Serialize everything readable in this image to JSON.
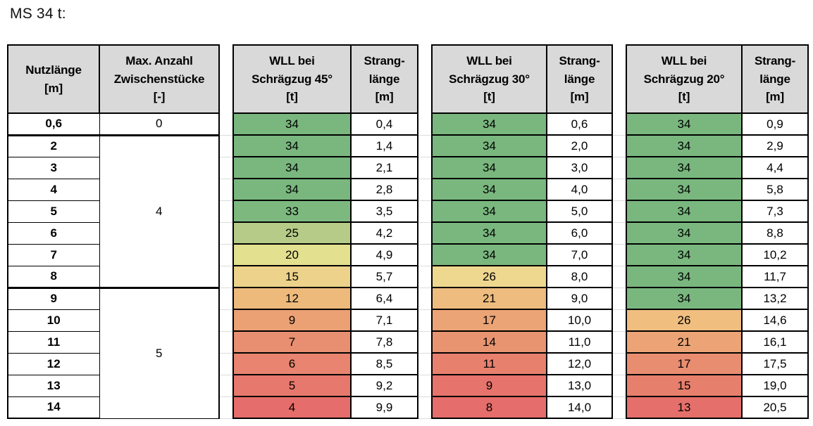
{
  "title": "MS 34 t:",
  "colors": {
    "header_bg": "#d9d9d9",
    "grid": "#000000",
    "faint_grid": "#dcdcdc",
    "scale_green": "#79B77E",
    "scale_yellow": "#E8E291",
    "scale_red": "#E56D6B"
  },
  "table": {
    "headers": {
      "nutzlaenge": "Nutzlänge\n[m]",
      "anzahl": "Max. Anzahl\nZwischenstücke\n[-]",
      "wll45": "WLL bei\nSchrägzug 45°\n[t]",
      "wll30": "WLL bei\nSchrägzug 30°\n[t]",
      "wll20": "WLL bei\nSchrägzug 20°\n[t]",
      "strang": "Strang-\nlänge\n[m]"
    },
    "anzahl_groups": [
      {
        "label": "0",
        "span": 1
      },
      {
        "label": "4",
        "span": 7
      },
      {
        "label": "5",
        "span": 6
      }
    ],
    "rows": [
      {
        "nutzlaenge": "0,6",
        "wll45": "34",
        "wll45_color": "#79B77E",
        "strang45": "0,4",
        "wll30": "34",
        "wll30_color": "#79B77E",
        "strang30": "0,6",
        "wll20": "34",
        "wll20_color": "#79B77E",
        "strang20": "0,9"
      },
      {
        "nutzlaenge": "2",
        "wll45": "34",
        "wll45_color": "#79B77E",
        "strang45": "1,4",
        "wll30": "34",
        "wll30_color": "#79B77E",
        "strang30": "2,0",
        "wll20": "34",
        "wll20_color": "#79B77E",
        "strang20": "2,9"
      },
      {
        "nutzlaenge": "3",
        "wll45": "34",
        "wll45_color": "#79B77E",
        "strang45": "2,1",
        "wll30": "34",
        "wll30_color": "#79B77E",
        "strang30": "3,0",
        "wll20": "34",
        "wll20_color": "#79B77E",
        "strang20": "4,4"
      },
      {
        "nutzlaenge": "4",
        "wll45": "34",
        "wll45_color": "#79B77E",
        "strang45": "2,8",
        "wll30": "34",
        "wll30_color": "#79B77E",
        "strang30": "4,0",
        "wll20": "34",
        "wll20_color": "#79B77E",
        "strang20": "5,8"
      },
      {
        "nutzlaenge": "5",
        "wll45": "33",
        "wll45_color": "#7DB97F",
        "strang45": "3,5",
        "wll30": "34",
        "wll30_color": "#79B77E",
        "strang30": "5,0",
        "wll20": "34",
        "wll20_color": "#79B77E",
        "strang20": "7,3"
      },
      {
        "nutzlaenge": "6",
        "wll45": "25",
        "wll45_color": "#B6CB87",
        "strang45": "4,2",
        "wll30": "34",
        "wll30_color": "#79B77E",
        "strang30": "6,0",
        "wll20": "34",
        "wll20_color": "#79B77E",
        "strang20": "8,8"
      },
      {
        "nutzlaenge": "7",
        "wll45": "20",
        "wll45_color": "#E3E08F",
        "strang45": "4,9",
        "wll30": "34",
        "wll30_color": "#79B77E",
        "strang30": "7,0",
        "wll20": "34",
        "wll20_color": "#79B77E",
        "strang20": "10,2"
      },
      {
        "nutzlaenge": "8",
        "wll45": "15",
        "wll45_color": "#ECD28A",
        "strang45": "5,7",
        "wll30": "26",
        "wll30_color": "#EED78F",
        "strang30": "8,0",
        "wll20": "34",
        "wll20_color": "#79B77E",
        "strang20": "11,7"
      },
      {
        "nutzlaenge": "9",
        "wll45": "12",
        "wll45_color": "#EDBA7C",
        "strang45": "6,4",
        "wll30": "21",
        "wll30_color": "#EDBC7E",
        "strang30": "9,0",
        "wll20": "34",
        "wll20_color": "#79B77E",
        "strang20": "13,2"
      },
      {
        "nutzlaenge": "10",
        "wll45": "9",
        "wll45_color": "#EBA174",
        "strang45": "7,1",
        "wll30": "17",
        "wll30_color": "#EBA476",
        "strang30": "10,0",
        "wll20": "26",
        "wll20_color": "#F0BE7F",
        "strang20": "14,6"
      },
      {
        "nutzlaenge": "11",
        "wll45": "7",
        "wll45_color": "#E98F71",
        "strang45": "7,8",
        "wll30": "14",
        "wll30_color": "#E99471",
        "strang30": "11,0",
        "wll20": "21",
        "wll20_color": "#ECA476",
        "strang20": "16,1"
      },
      {
        "nutzlaenge": "12",
        "wll45": "6",
        "wll45_color": "#E8846F",
        "strang45": "8,5",
        "wll30": "11",
        "wll30_color": "#E8806E",
        "strang30": "12,0",
        "wll20": "17",
        "wll20_color": "#E98D70",
        "strang20": "17,5"
      },
      {
        "nutzlaenge": "13",
        "wll45": "5",
        "wll45_color": "#E7786D",
        "strang45": "9,2",
        "wll30": "9",
        "wll30_color": "#E6736C",
        "strang30": "13,0",
        "wll20": "15",
        "wll20_color": "#E77F6D",
        "strang20": "19,0"
      },
      {
        "nutzlaenge": "14",
        "wll45": "4",
        "wll45_color": "#E56D6B",
        "strang45": "9,9",
        "wll30": "8",
        "wll30_color": "#E56D6B",
        "strang30": "14,0",
        "wll20": "13",
        "wll20_color": "#E56F6B",
        "strang20": "20,5"
      }
    ]
  }
}
